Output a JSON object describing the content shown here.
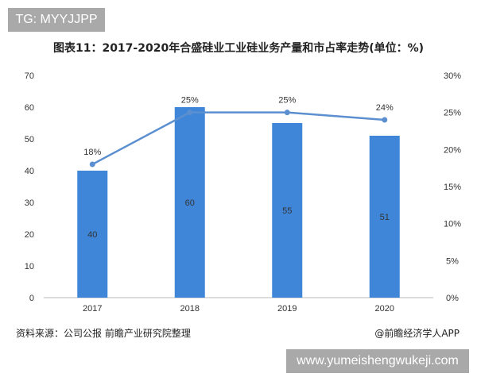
{
  "watermark_tag": "TG: MYYJJPP",
  "title": "图表11：2017-2020年合盛硅业工业硅业务产量和市占率走势(单位：%)",
  "source": "资料来源：公司公报 前瞻产业研究院整理",
  "credit": "@前瞻经济学人APP",
  "url": "www.yumeishengwukeji.com",
  "colors": {
    "bar": "#3f86d9",
    "line": "#5b8fd0"
  },
  "chart_data": {
    "type": "bar+line",
    "categories": [
      "2017",
      "2018",
      "2019",
      "2020"
    ],
    "series": [
      {
        "name": "产量",
        "type": "bar",
        "axis": "left",
        "values": [
          40,
          60,
          55,
          51
        ],
        "labels": [
          "40",
          "60",
          "55",
          "51"
        ]
      },
      {
        "name": "市占率",
        "type": "line",
        "axis": "right",
        "values": [
          18,
          25,
          25,
          24
        ],
        "labels": [
          "18%",
          "25%",
          "25%",
          "24%"
        ]
      }
    ],
    "left_axis": {
      "ylim": [
        0,
        70
      ],
      "ticks": [
        "0",
        "10",
        "20",
        "30",
        "40",
        "50",
        "60",
        "70"
      ]
    },
    "right_axis": {
      "ylim": [
        0,
        30
      ],
      "ticks": [
        "0%",
        "5%",
        "10%",
        "15%",
        "20%",
        "25%",
        "30%"
      ]
    },
    "grid": false
  }
}
